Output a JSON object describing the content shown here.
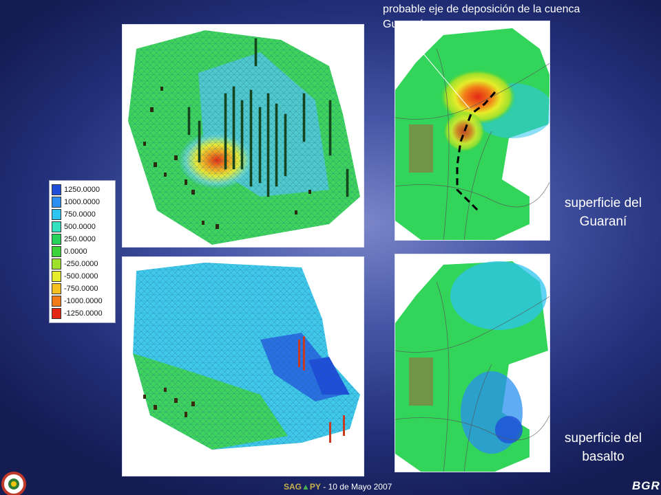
{
  "annotation": "probable eje de deposición de la cuenca Guaraní",
  "captions": {
    "guarani_line1": "superficie del",
    "guarani_line2": "Guaraní",
    "basalto_line1": "superficie del",
    "basalto_line2": "basalto"
  },
  "legend": [
    {
      "label": "1250.0000",
      "color": "#1f4fd8"
    },
    {
      "label": "1000.0000",
      "color": "#2a8ff0"
    },
    {
      "label": "750.0000",
      "color": "#2ec4f0"
    },
    {
      "label": "500.0000",
      "color": "#33e0c0"
    },
    {
      "label": "250.0000",
      "color": "#27d35a"
    },
    {
      "label": "0.0000",
      "color": "#3cd23a"
    },
    {
      "label": "-250.0000",
      "color": "#9ee02c"
    },
    {
      "label": "-500.0000",
      "color": "#e6ec2a"
    },
    {
      "label": "-750.0000",
      "color": "#f5c020"
    },
    {
      "label": "-1000.0000",
      "color": "#f27a18"
    },
    {
      "label": "-1250.0000",
      "color": "#e22814"
    }
  ],
  "footer": {
    "sag": "SAG",
    "triangle": "▲",
    "py": "PY",
    "date": " - 10 de Mayo 2007"
  },
  "logo_text": "BGR"
}
